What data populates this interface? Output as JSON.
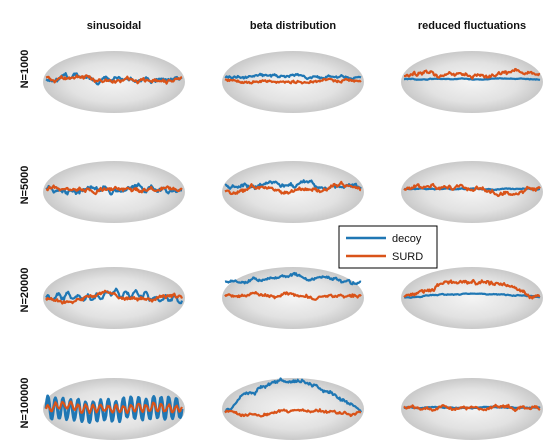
{
  "chart_data": {
    "type": "line",
    "column_titles": [
      "sinusoidal",
      "beta distribution",
      "reduced fluctuations"
    ],
    "row_labels": [
      "N=1000",
      "N=5000",
      "N=20000",
      "N=100000"
    ],
    "legend": {
      "placement": "center",
      "entries": [
        {
          "name": "decoy",
          "color": "#1f77b4"
        },
        {
          "name": "SURD",
          "color": "#d95319"
        }
      ]
    },
    "axes_visible": false,
    "background_shape": "gray ellipse",
    "panels": [
      {
        "row": 0,
        "col": 0,
        "decoy": {
          "base": 0.5,
          "osc_amp": 0.05,
          "osc_cycles": 10,
          "bump": 0.0,
          "noise": 0.2
        },
        "surd": {
          "base": 0.5,
          "osc_amp": 0.0,
          "osc_cycles": 0,
          "bump": 0.0,
          "noise": 0.2
        }
      },
      {
        "row": 0,
        "col": 1,
        "decoy": {
          "base": 0.65,
          "osc_amp": 0.0,
          "osc_cycles": 0,
          "bump": 0.05,
          "noise": 0.14
        },
        "surd": {
          "base": 0.45,
          "osc_amp": 0.0,
          "osc_cycles": 0,
          "bump": 0.0,
          "noise": 0.15
        }
      },
      {
        "row": 0,
        "col": 2,
        "decoy": {
          "base": 0.5,
          "osc_amp": 0.0,
          "osc_cycles": 0,
          "bump": 0.0,
          "noise": 0.04
        },
        "surd": {
          "base": 0.8,
          "osc_amp": 0.0,
          "osc_cycles": 0,
          "bump": 0.05,
          "noise": 0.2
        }
      },
      {
        "row": 1,
        "col": 0,
        "decoy": {
          "base": 0.5,
          "osc_amp": 0.1,
          "osc_cycles": 12,
          "bump": 0.0,
          "noise": 0.25
        },
        "surd": {
          "base": 0.5,
          "osc_amp": 0.0,
          "osc_cycles": 0,
          "bump": 0.0,
          "noise": 0.22
        }
      },
      {
        "row": 1,
        "col": 1,
        "decoy": {
          "base": 0.75,
          "osc_amp": 0.0,
          "osc_cycles": 0,
          "bump": 0.0,
          "noise": 0.2
        },
        "surd": {
          "base": 0.45,
          "osc_amp": 0.0,
          "osc_cycles": 0,
          "bump": 0.0,
          "noise": 0.22
        }
      },
      {
        "row": 1,
        "col": 2,
        "decoy": {
          "base": 0.5,
          "osc_amp": 0.0,
          "osc_cycles": 0,
          "bump": 0.0,
          "noise": 0.05
        },
        "surd": {
          "base": 0.5,
          "osc_amp": 0.0,
          "osc_cycles": 0,
          "bump": 0.0,
          "noise": 0.22
        }
      },
      {
        "row": 2,
        "col": 0,
        "decoy": {
          "base": 0.3,
          "osc_amp": 0.2,
          "osc_cycles": 14,
          "bump": 0.15,
          "noise": 0.2
        },
        "surd": {
          "base": 0.3,
          "osc_amp": 0.0,
          "osc_cycles": 0,
          "bump": 0.15,
          "noise": 0.2
        }
      },
      {
        "row": 2,
        "col": 1,
        "decoy": {
          "base": 1.4,
          "osc_amp": 0.0,
          "osc_cycles": 0,
          "bump": 0.3,
          "noise": 0.18
        },
        "surd": {
          "base": 0.5,
          "osc_amp": 0.0,
          "osc_cycles": 0,
          "bump": 0.0,
          "noise": 0.18
        }
      },
      {
        "row": 2,
        "col": 2,
        "decoy": {
          "base": 0.3,
          "osc_amp": 0.0,
          "osc_cycles": 0,
          "bump": 0.25,
          "noise": 0.05
        },
        "surd": {
          "base": 0.4,
          "osc_amp": 0.0,
          "osc_cycles": 0,
          "bump": 0.9,
          "noise": 0.2
        }
      },
      {
        "row": 3,
        "col": 0,
        "decoy": {
          "base": 0.3,
          "osc_amp": 0.75,
          "osc_cycles": 18,
          "bump": 0.0,
          "noise": 0.15
        },
        "surd": {
          "base": 0.3,
          "osc_amp": 0.25,
          "osc_cycles": 18,
          "bump": 0.0,
          "noise": 0.15
        }
      },
      {
        "row": 3,
        "col": 1,
        "decoy": {
          "base": 0.1,
          "osc_amp": 0.0,
          "osc_cycles": 0,
          "bump": 2.2,
          "noise": 0.2
        },
        "surd": {
          "base": 0.0,
          "osc_amp": 0.0,
          "osc_cycles": 0,
          "bump": 0.0,
          "noise": 0.15
        }
      },
      {
        "row": 3,
        "col": 2,
        "decoy": {
          "base": 0.4,
          "osc_amp": 0.0,
          "osc_cycles": 0,
          "bump": 0.0,
          "noise": 0.05
        },
        "surd": {
          "base": 0.4,
          "osc_amp": 0.0,
          "osc_cycles": 0,
          "bump": 0.0,
          "noise": 0.18
        }
      }
    ]
  }
}
